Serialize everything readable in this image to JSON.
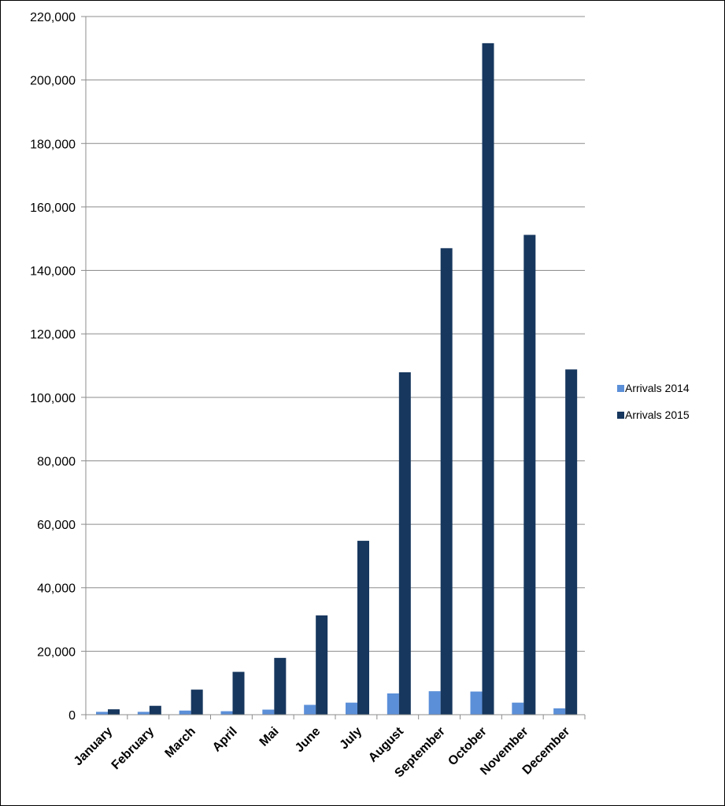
{
  "chart_data": {
    "type": "bar",
    "title": "",
    "xlabel": "",
    "ylabel": "",
    "categories": [
      "January",
      "February",
      "March",
      "April",
      "Mai",
      "June",
      "July",
      "August",
      "September",
      "October",
      "November",
      "December"
    ],
    "series": [
      {
        "name": "Arrivals 2014",
        "color": "#5b8fd8",
        "values": [
          900,
          900,
          1300,
          1100,
          1600,
          3100,
          3800,
          6700,
          7400,
          7300,
          3800,
          2000
        ]
      },
      {
        "name": "Arrivals 2015",
        "color": "#17375e",
        "values": [
          1700,
          2800,
          7900,
          13500,
          17900,
          31300,
          54800,
          107900,
          147000,
          211600,
          151200,
          108800
        ]
      }
    ],
    "ylim": [
      0,
      220000
    ],
    "yticks": [
      0,
      20000,
      40000,
      60000,
      80000,
      100000,
      120000,
      140000,
      160000,
      180000,
      200000,
      220000
    ],
    "ytick_labels": [
      "0",
      "20,000",
      "40,000",
      "60,000",
      "80,000",
      "100,000",
      "120,000",
      "140,000",
      "160,000",
      "180,000",
      "200,000",
      "220,000"
    ],
    "grid": true,
    "legend": "right"
  }
}
